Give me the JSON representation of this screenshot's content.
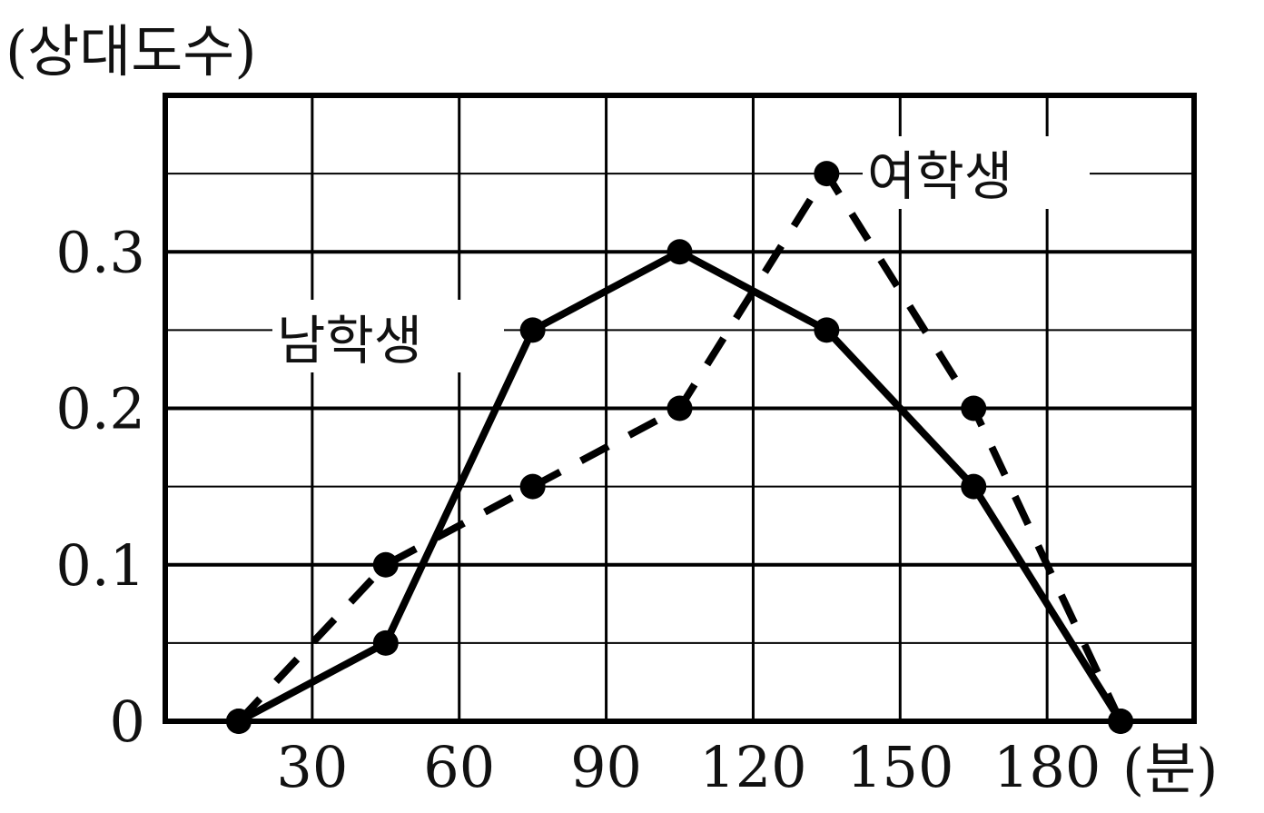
{
  "chart_data": {
    "type": "line",
    "ylabel": "(상대도수)",
    "xunit": "(분)",
    "x": [
      15,
      45,
      75,
      105,
      135,
      165,
      195
    ],
    "xticks": [
      30,
      60,
      90,
      120,
      150,
      180
    ],
    "xtick_labels": [
      "30",
      "60",
      "90",
      "120",
      "150",
      "180"
    ],
    "yticks": [
      0,
      0.1,
      0.2,
      0.3
    ],
    "ytick_labels": [
      "0",
      "0.1",
      "0.2",
      "0.3"
    ],
    "xlim": [
      0,
      210
    ],
    "ylim": [
      0,
      0.4
    ],
    "grid": true,
    "series": [
      {
        "name": "남학생",
        "style": "solid",
        "values": [
          0,
          0.05,
          0.25,
          0.3,
          0.25,
          0.15,
          0
        ]
      },
      {
        "name": "여학생",
        "style": "dashed",
        "values": [
          0,
          0.1,
          0.15,
          0.2,
          0.35,
          0.2,
          0
        ]
      }
    ],
    "colors": {
      "line": "#000000",
      "grid": "#000000",
      "text": "#111111"
    }
  }
}
